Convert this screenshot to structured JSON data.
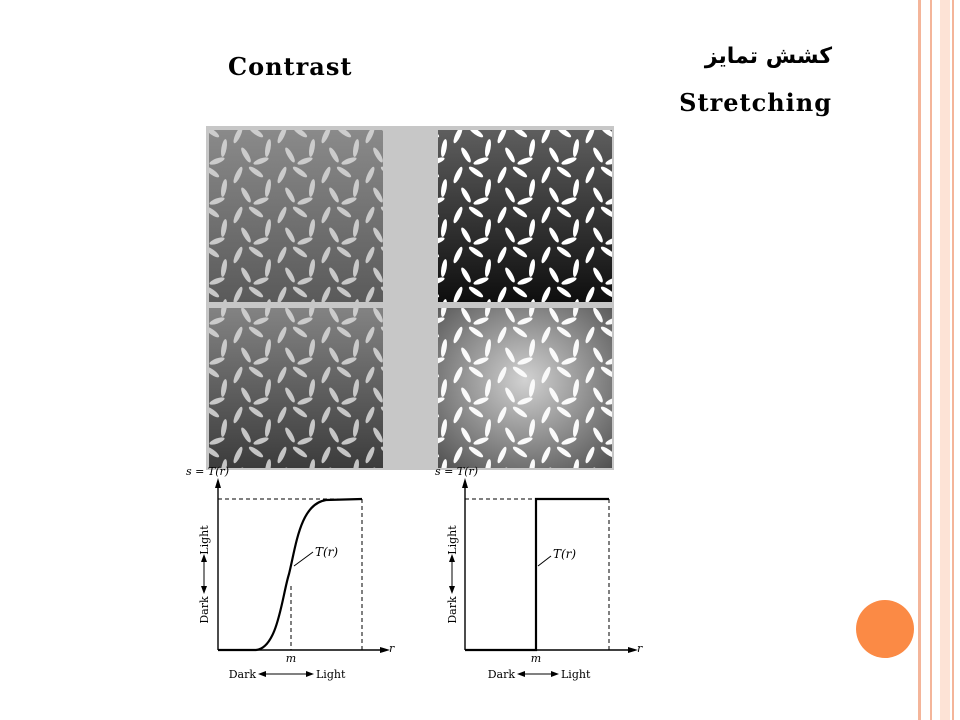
{
  "slide": {
    "title_persian": "كشش تمايز",
    "title_english_line1": "Contrast",
    "title_english_line2": "Stretching"
  },
  "graph_left": {
    "y_axis_label": "s = T(r)",
    "y_up_label": "Light",
    "y_down_label": "Dark",
    "x_axis_var": "r",
    "x_marker": "m",
    "x_left_label": "Dark",
    "x_right_label": "Light",
    "curve_label": "T(r)"
  },
  "graph_right": {
    "y_axis_label": "s = T(r)",
    "y_up_label": "Light",
    "y_down_label": "Dark",
    "x_axis_var": "r",
    "x_marker": "m",
    "x_left_label": "Dark",
    "x_right_label": "Light",
    "curve_label": "T(r)"
  },
  "colors": {
    "accent_circle": "#fb8a45",
    "edge_lines": "#f4b59a"
  }
}
